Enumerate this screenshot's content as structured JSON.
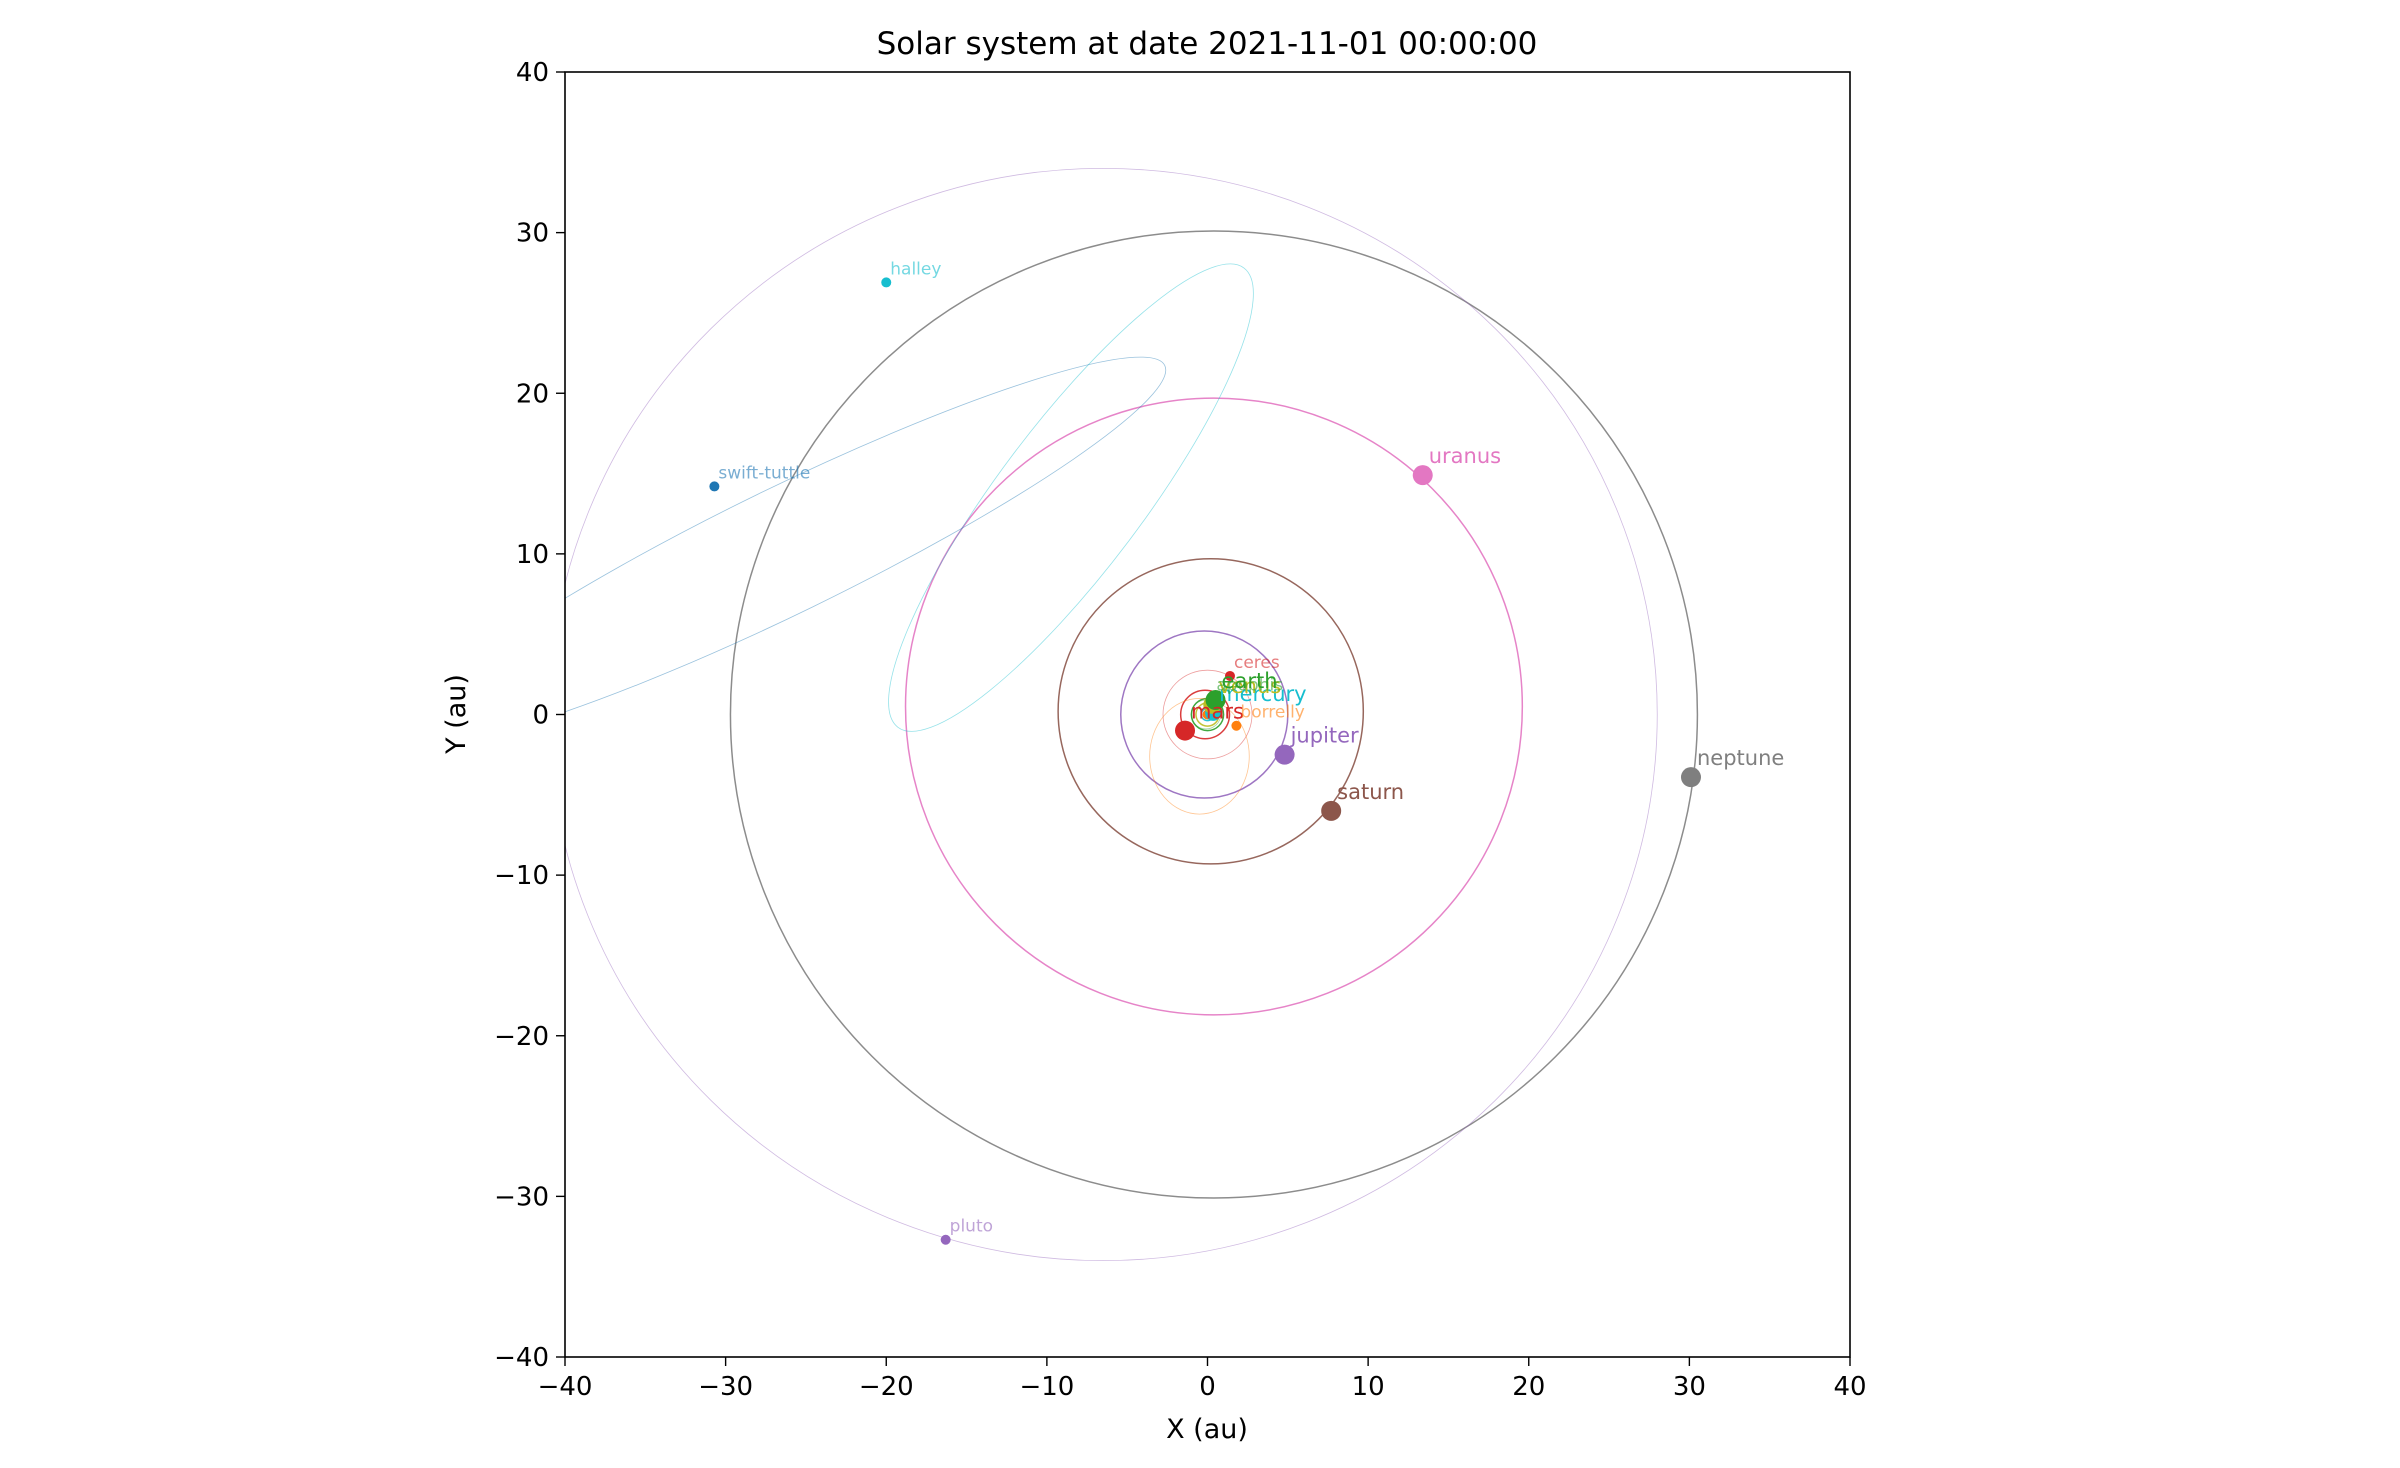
{
  "chart_data": {
    "type": "scatter",
    "title": "Solar system at date 2021-11-01 00:00:00",
    "xlabel": "X (au)",
    "ylabel": "Y (au)",
    "xlim": [
      -40,
      40
    ],
    "ylim": [
      -40,
      40
    ],
    "xticks": [
      -40,
      -30,
      -20,
      -10,
      0,
      10,
      20,
      30,
      40
    ],
    "yticks": [
      -40,
      -30,
      -20,
      -10,
      0,
      10,
      20,
      30,
      40
    ],
    "xtick_labels": [
      "−40",
      "−30",
      "−20",
      "−10",
      "0",
      "10",
      "20",
      "30",
      "40"
    ],
    "ytick_labels": [
      "−40",
      "−30",
      "−20",
      "−10",
      "0",
      "10",
      "20",
      "30",
      "40"
    ],
    "grid": false,
    "bodies": [
      {
        "name": "sun",
        "label": "",
        "x": 0.0,
        "y": 0.0,
        "color": "#ff7f0e",
        "marker": 5,
        "orbit": null
      },
      {
        "name": "mercury",
        "label": "mercury",
        "x": 0.35,
        "y": 0.1,
        "color": "#17becf",
        "marker": 8,
        "orbit": {
          "cx": 0.0,
          "cy": 0.0,
          "rx": 0.39,
          "ry": 0.38,
          "rot": 0,
          "color": "#17becf",
          "width": 1.5
        }
      },
      {
        "name": "venus",
        "label": "venus",
        "x": 0.3,
        "y": 0.6,
        "color": "#bcbd22",
        "marker": 9,
        "orbit": {
          "cx": 0.0,
          "cy": 0.0,
          "rx": 0.72,
          "ry": 0.72,
          "rot": 0,
          "color": "#bcbd22",
          "width": 1.5
        }
      },
      {
        "name": "earth",
        "label": "earth",
        "x": 0.5,
        "y": 0.9,
        "color": "#2ca02c",
        "marker": 10,
        "orbit": {
          "cx": 0.0,
          "cy": 0.0,
          "rx": 1.0,
          "ry": 1.0,
          "rot": 0,
          "color": "#2ca02c",
          "width": 1.5
        }
      },
      {
        "name": "mars",
        "label": "mars",
        "x": -1.4,
        "y": -1.0,
        "color": "#d62728",
        "marker": 10,
        "orbit": {
          "cx": -0.15,
          "cy": 0.0,
          "rx": 1.52,
          "ry": 1.51,
          "rot": 0,
          "color": "#d62728",
          "width": 1.5
        }
      },
      {
        "name": "jupiter",
        "label": "jupiter",
        "x": 4.8,
        "y": -2.5,
        "color": "#9467bd",
        "marker": 10,
        "orbit": {
          "cx": -0.2,
          "cy": 0.0,
          "rx": 5.2,
          "ry": 5.2,
          "rot": 0,
          "color": "#9467bd",
          "width": 1.5
        }
      },
      {
        "name": "saturn",
        "label": "saturn",
        "x": 7.7,
        "y": -6.0,
        "color": "#8c564b",
        "marker": 10,
        "orbit": {
          "cx": 0.2,
          "cy": 0.2,
          "rx": 9.5,
          "ry": 9.5,
          "rot": 0,
          "color": "#8c564b",
          "width": 1.5
        }
      },
      {
        "name": "uranus",
        "label": "uranus",
        "x": 13.4,
        "y": 14.9,
        "color": "#e377c2",
        "marker": 10,
        "orbit": {
          "cx": 0.4,
          "cy": 0.5,
          "rx": 19.2,
          "ry": 19.2,
          "rot": 0,
          "color": "#e377c2",
          "width": 1.5
        }
      },
      {
        "name": "neptune",
        "label": "neptune",
        "x": 30.1,
        "y": -3.9,
        "color": "#7f7f7f",
        "marker": 10,
        "orbit": {
          "cx": 0.4,
          "cy": 0.0,
          "rx": 30.1,
          "ry": 30.1,
          "rot": 0,
          "color": "#7f7f7f",
          "width": 1.5
        }
      },
      {
        "name": "ceres",
        "label": "ceres",
        "x": 1.4,
        "y": 2.4,
        "color": "#d62728",
        "marker": 5,
        "orbit": {
          "cx": 0.0,
          "cy": 0.0,
          "rx": 2.77,
          "ry": 2.76,
          "rot": 0,
          "color": "#d62728",
          "width": 0.8
        }
      },
      {
        "name": "apophis",
        "label": "apophis",
        "x": 0.3,
        "y": 1.0,
        "color": "#2ca02c",
        "marker": 4,
        "orbit": {
          "cx": -0.1,
          "cy": 0.0,
          "rx": 0.92,
          "ry": 0.9,
          "rot": 0,
          "color": "#2ca02c",
          "width": 0.8
        }
      },
      {
        "name": "borrelly",
        "label": "borrelly",
        "x": 1.8,
        "y": -0.7,
        "color": "#ff7f0e",
        "marker": 5,
        "orbit": {
          "cx": -0.5,
          "cy": -2.6,
          "rx": 3.1,
          "ry": 3.6,
          "rot": 0,
          "color": "#ff7f0e",
          "width": 0.8
        }
      },
      {
        "name": "halley",
        "label": "halley",
        "x": -20.0,
        "y": 26.9,
        "color": "#17becf",
        "marker": 5,
        "orbit": {
          "cx": -8.5,
          "cy": 13.5,
          "rx": 17.9,
          "ry": 4.5,
          "rot": -53,
          "color": "#17becf",
          "width": 0.8
        }
      },
      {
        "name": "swift-tuttle",
        "label": "swift-tuttle",
        "x": -30.7,
        "y": 14.2,
        "color": "#1f77b4",
        "marker": 5,
        "orbit": {
          "cx": -26.3,
          "cy": 10.2,
          "rx": 26.3,
          "ry": 3.9,
          "rot": -26,
          "color": "#1f77b4",
          "width": 0.8
        }
      },
      {
        "name": "pluto",
        "label": "pluto",
        "x": -16.3,
        "y": -32.7,
        "color": "#9467bd",
        "marker": 5,
        "orbit": {
          "cx": -6.5,
          "cy": 0.0,
          "rx": 34.5,
          "ry": 34.0,
          "rot": 0,
          "color": "#9467bd",
          "width": 0.8
        }
      }
    ]
  }
}
